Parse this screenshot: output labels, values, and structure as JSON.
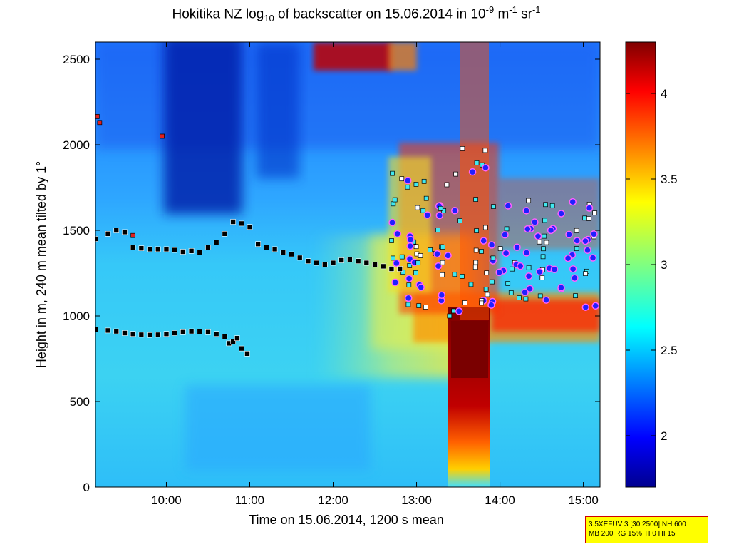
{
  "title": {
    "p1": "Hokitika NZ log",
    "sub": "10",
    "p2": " of backscatter on 15.06.2014 in 10",
    "sup1": "-9",
    "p3": " m",
    "sup2": "-1",
    "p4": " sr",
    "sup3": "-1"
  },
  "info_box": {
    "line1": "3.5XEFUV 3 [30 2500] NH 600",
    "line2": "MB 200 RG 15% TI 0 HI 15"
  },
  "colors": {
    "jet_low": "#00008f",
    "jet_mid": "#80ff80",
    "jet_high": "#800000",
    "cloud_marker_fill": "#2020ff",
    "cloud_marker_edge": "#ff40ff",
    "layer_marker": "#000000"
  },
  "chart_data": {
    "type": "heatmap",
    "xlabel": "Time on 15.06.2014, 1200 s mean",
    "ylabel": "Height in m, 240 m mean tilted by 1°",
    "xlim": [
      9.15,
      15.2
    ],
    "ylim": [
      0,
      2600
    ],
    "x_ticks": [
      10,
      11,
      12,
      13,
      14,
      15
    ],
    "x_tick_labels": [
      "10:00",
      "11:00",
      "12:00",
      "13:00",
      "14:00",
      "15:00"
    ],
    "y_ticks": [
      0,
      500,
      1000,
      1500,
      2000,
      2500
    ],
    "y_tick_labels": [
      "0",
      "500",
      "1000",
      "1500",
      "2000",
      "2500"
    ],
    "colorbar": {
      "colormap": "jet",
      "range": [
        1.7,
        4.3
      ],
      "ticks": [
        2,
        2.5,
        3,
        3.5,
        4
      ],
      "tick_labels": [
        "2",
        "2.5",
        "3",
        "3.5",
        "4"
      ]
    },
    "series": [
      {
        "marker": "square-black",
        "x": [
          9.15,
          9.3,
          9.4,
          9.5,
          9.6,
          9.7,
          9.8,
          9.9,
          10.0,
          10.1,
          10.2,
          10.3,
          10.4,
          10.5,
          10.6,
          10.7,
          10.8,
          10.9,
          11.0,
          11.1,
          11.2,
          11.3,
          11.4,
          11.5,
          11.6,
          11.7,
          11.8,
          11.9,
          12.0,
          12.1,
          12.2,
          12.3,
          12.4,
          12.5,
          12.6,
          12.7,
          12.8
        ],
        "y": [
          1450,
          1480,
          1500,
          1490,
          1400,
          1395,
          1390,
          1390,
          1390,
          1385,
          1375,
          1380,
          1370,
          1400,
          1430,
          1480,
          1550,
          1540,
          1520,
          1420,
          1400,
          1390,
          1370,
          1360,
          1340,
          1320,
          1310,
          1300,
          1310,
          1325,
          1330,
          1320,
          1310,
          1300,
          1290,
          1275,
          1275
        ]
      },
      {
        "marker": "square-black",
        "x": [
          9.15,
          9.3,
          9.4,
          9.5,
          9.6,
          9.7,
          9.8,
          9.9,
          10.0,
          10.1,
          10.2,
          10.3,
          10.4,
          10.5,
          10.6,
          10.7,
          10.75,
          10.8,
          10.85,
          10.9,
          10.97
        ],
        "y": [
          920,
          915,
          910,
          900,
          895,
          890,
          888,
          890,
          895,
          900,
          905,
          910,
          908,
          905,
          895,
          880,
          840,
          850,
          870,
          810,
          780
        ]
      }
    ]
  }
}
